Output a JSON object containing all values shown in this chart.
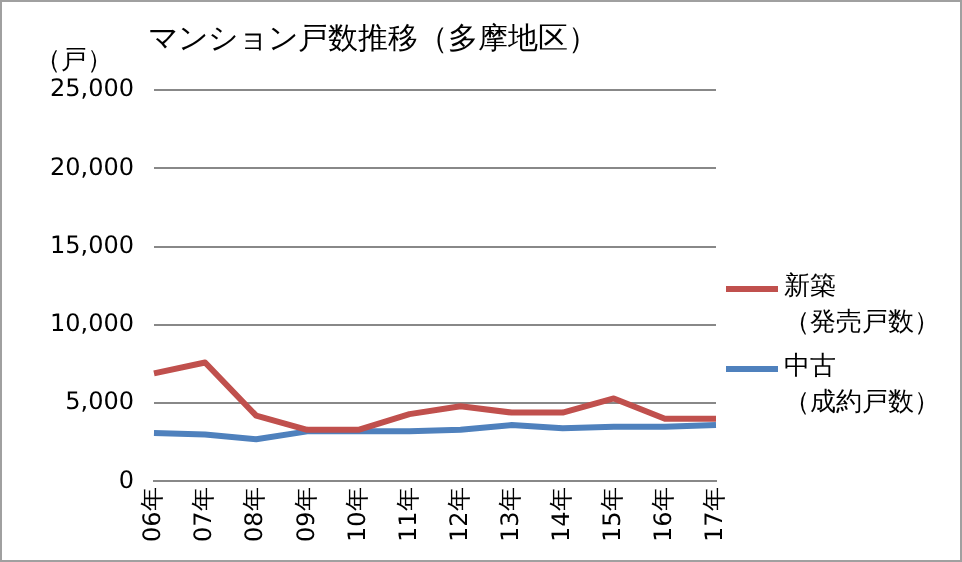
{
  "chart_data": {
    "type": "line",
    "title": "マンション戸数推移（多摩地区）",
    "ylabel": "（戸）",
    "categories": [
      "06年",
      "07年",
      "08年",
      "09年",
      "10年",
      "11年",
      "12年",
      "13年",
      "14年",
      "15年",
      "16年",
      "17年"
    ],
    "series": [
      {
        "name": "新築（発売戸数）",
        "color": "#c0504d",
        "values": [
          6900,
          7600,
          4200,
          3300,
          3300,
          4300,
          4800,
          4400,
          4400,
          5300,
          4000,
          4000
        ]
      },
      {
        "name": "中古（成約戸数）",
        "color": "#4f81bd",
        "values": [
          3100,
          3000,
          2700,
          3200,
          3200,
          3200,
          3300,
          3600,
          3400,
          3500,
          3500,
          3600
        ]
      }
    ],
    "ylim": [
      0,
      25000
    ],
    "yticks": [
      {
        "value": 0,
        "label": "0"
      },
      {
        "value": 5000,
        "label": "5,000"
      },
      {
        "value": 10000,
        "label": "10,000"
      },
      {
        "value": 15000,
        "label": "15,000"
      },
      {
        "value": 20000,
        "label": "20,000"
      },
      {
        "value": 25000,
        "label": "25,000"
      }
    ],
    "grid": "y",
    "legend": "right",
    "marker": "none",
    "line_style": "solid"
  }
}
